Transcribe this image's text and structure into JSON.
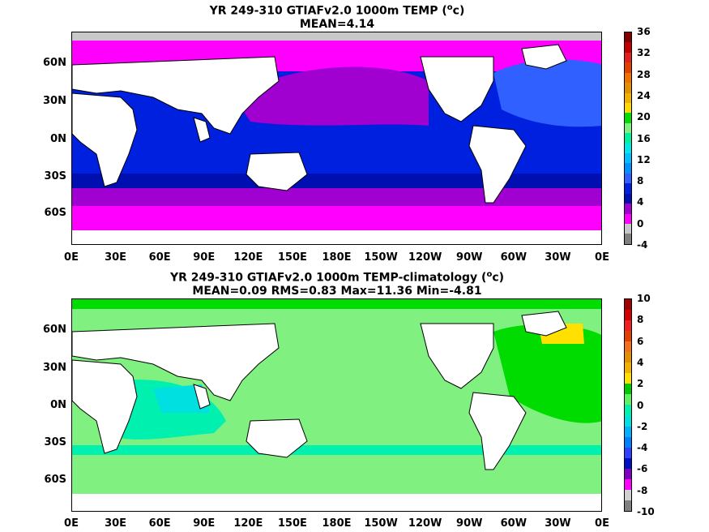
{
  "panels": [
    {
      "title_line1_pre": "YR 249-310 GTIAFv2.0 1000m TEMP (",
      "title_sup": "o",
      "title_line1_post": "c)",
      "title_line2": "MEAN=4.14",
      "lat_labels": [
        "60N",
        "30N",
        "0N",
        "30S",
        "60S"
      ],
      "lon_labels": [
        "0E",
        "30E",
        "60E",
        "90E",
        "120E",
        "150E",
        "180E",
        "150W",
        "120W",
        "90W",
        "60W",
        "30W",
        "0E"
      ],
      "colorbar": {
        "labels": [
          "36",
          "32",
          "28",
          "24",
          "20",
          "16",
          "12",
          "8",
          "4",
          "0",
          "-4"
        ],
        "colors": [
          "#800000",
          "#c00000",
          "#e02020",
          "#e04000",
          "#f07000",
          "#e09000",
          "#f0b000",
          "#ffd800",
          "#00dc00",
          "#80f080",
          "#00f0a0",
          "#00e8e8",
          "#00c0ff",
          "#0090ff",
          "#3060ff",
          "#0020e0",
          "#0010b0",
          "#a000d0",
          "#ff00ff",
          "#c8c8c8",
          "#808080"
        ]
      }
    },
    {
      "title_line1_pre": "YR 249-310 GTIAFv2.0 1000m TEMP-climatology (",
      "title_sup": "o",
      "title_line1_post": "c)",
      "title_line2": "MEAN=0.09   RMS=0.83   Max=11.36   Min=-4.81",
      "lat_labels": [
        "60N",
        "30N",
        "0N",
        "30S",
        "60S"
      ],
      "lon_labels": [
        "0E",
        "30E",
        "60E",
        "90E",
        "120E",
        "150E",
        "180E",
        "150W",
        "120W",
        "90W",
        "60W",
        "30W",
        "0E"
      ],
      "colorbar": {
        "labels": [
          "10",
          "8",
          "6",
          "4",
          "2",
          "0",
          "-2",
          "-4",
          "-6",
          "-8",
          "-10"
        ],
        "colors": [
          "#a00000",
          "#d00000",
          "#f02020",
          "#e04000",
          "#f07020",
          "#e09000",
          "#f0b000",
          "#ffe000",
          "#00c800",
          "#60f060",
          "#00f0b0",
          "#00e0e0",
          "#00b0ff",
          "#0080ff",
          "#3040ff",
          "#0010c0",
          "#8000c0",
          "#ff00ff",
          "#d0d0d0",
          "#808080"
        ]
      }
    }
  ],
  "colors": {
    "land": "#ffffff",
    "coast": "#000000"
  }
}
